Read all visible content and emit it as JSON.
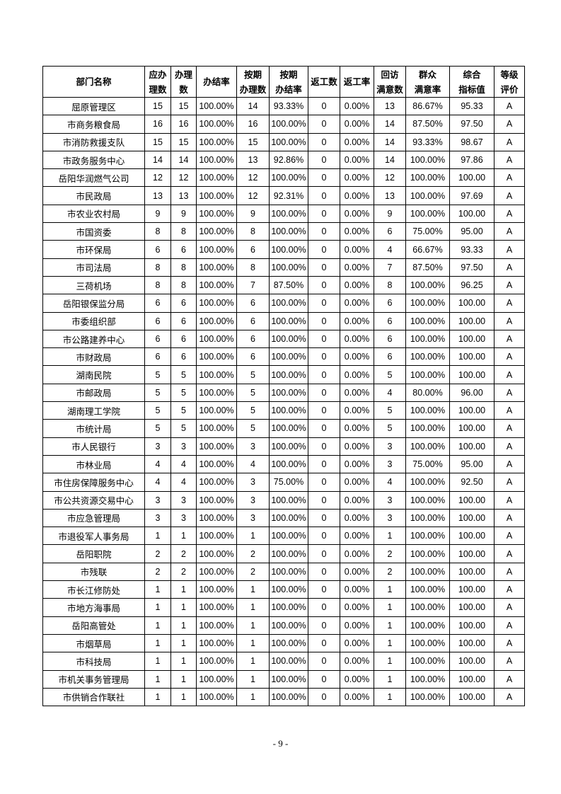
{
  "table": {
    "headers": [
      "部门名称",
      "应办\n理数",
      "办理\n数",
      "办结率",
      "按期\n办理数",
      "按期\n办结率",
      "返工数",
      "返工率",
      "回访\n满意数",
      "群众\n满意率",
      "综合\n指标值",
      "等级\n评价"
    ],
    "rows": [
      [
        "屈原管理区",
        "15",
        "15",
        "100.00%",
        "14",
        "93.33%",
        "0",
        "0.00%",
        "13",
        "86.67%",
        "95.33",
        "A"
      ],
      [
        "市商务粮食局",
        "16",
        "16",
        "100.00%",
        "16",
        "100.00%",
        "0",
        "0.00%",
        "14",
        "87.50%",
        "97.50",
        "A"
      ],
      [
        "市消防救援支队",
        "15",
        "15",
        "100.00%",
        "15",
        "100.00%",
        "0",
        "0.00%",
        "14",
        "93.33%",
        "98.67",
        "A"
      ],
      [
        "市政务服务中心",
        "14",
        "14",
        "100.00%",
        "13",
        "92.86%",
        "0",
        "0.00%",
        "14",
        "100.00%",
        "97.86",
        "A"
      ],
      [
        "岳阳华润燃气公司",
        "12",
        "12",
        "100.00%",
        "12",
        "100.00%",
        "0",
        "0.00%",
        "12",
        "100.00%",
        "100.00",
        "A"
      ],
      [
        "市民政局",
        "13",
        "13",
        "100.00%",
        "12",
        "92.31%",
        "0",
        "0.00%",
        "13",
        "100.00%",
        "97.69",
        "A"
      ],
      [
        "市农业农村局",
        "9",
        "9",
        "100.00%",
        "9",
        "100.00%",
        "0",
        "0.00%",
        "9",
        "100.00%",
        "100.00",
        "A"
      ],
      [
        "市国资委",
        "8",
        "8",
        "100.00%",
        "8",
        "100.00%",
        "0",
        "0.00%",
        "6",
        "75.00%",
        "95.00",
        "A"
      ],
      [
        "市环保局",
        "6",
        "6",
        "100.00%",
        "6",
        "100.00%",
        "0",
        "0.00%",
        "4",
        "66.67%",
        "93.33",
        "A"
      ],
      [
        "市司法局",
        "8",
        "8",
        "100.00%",
        "8",
        "100.00%",
        "0",
        "0.00%",
        "7",
        "87.50%",
        "97.50",
        "A"
      ],
      [
        "三荷机场",
        "8",
        "8",
        "100.00%",
        "7",
        "87.50%",
        "0",
        "0.00%",
        "8",
        "100.00%",
        "96.25",
        "A"
      ],
      [
        "岳阳银保监分局",
        "6",
        "6",
        "100.00%",
        "6",
        "100.00%",
        "0",
        "0.00%",
        "6",
        "100.00%",
        "100.00",
        "A"
      ],
      [
        "市委组织部",
        "6",
        "6",
        "100.00%",
        "6",
        "100.00%",
        "0",
        "0.00%",
        "6",
        "100.00%",
        "100.00",
        "A"
      ],
      [
        "市公路建养中心",
        "6",
        "6",
        "100.00%",
        "6",
        "100.00%",
        "0",
        "0.00%",
        "6",
        "100.00%",
        "100.00",
        "A"
      ],
      [
        "市财政局",
        "6",
        "6",
        "100.00%",
        "6",
        "100.00%",
        "0",
        "0.00%",
        "6",
        "100.00%",
        "100.00",
        "A"
      ],
      [
        "湖南民院",
        "5",
        "5",
        "100.00%",
        "5",
        "100.00%",
        "0",
        "0.00%",
        "5",
        "100.00%",
        "100.00",
        "A"
      ],
      [
        "市邮政局",
        "5",
        "5",
        "100.00%",
        "5",
        "100.00%",
        "0",
        "0.00%",
        "4",
        "80.00%",
        "96.00",
        "A"
      ],
      [
        "湖南理工学院",
        "5",
        "5",
        "100.00%",
        "5",
        "100.00%",
        "0",
        "0.00%",
        "5",
        "100.00%",
        "100.00",
        "A"
      ],
      [
        "市统计局",
        "5",
        "5",
        "100.00%",
        "5",
        "100.00%",
        "0",
        "0.00%",
        "5",
        "100.00%",
        "100.00",
        "A"
      ],
      [
        "市人民银行",
        "3",
        "3",
        "100.00%",
        "3",
        "100.00%",
        "0",
        "0.00%",
        "3",
        "100.00%",
        "100.00",
        "A"
      ],
      [
        "市林业局",
        "4",
        "4",
        "100.00%",
        "4",
        "100.00%",
        "0",
        "0.00%",
        "3",
        "75.00%",
        "95.00",
        "A"
      ],
      [
        "市住房保障服务中心",
        "4",
        "4",
        "100.00%",
        "3",
        "75.00%",
        "0",
        "0.00%",
        "4",
        "100.00%",
        "92.50",
        "A"
      ],
      [
        "市公共资源交易中心",
        "3",
        "3",
        "100.00%",
        "3",
        "100.00%",
        "0",
        "0.00%",
        "3",
        "100.00%",
        "100.00",
        "A"
      ],
      [
        "市应急管理局",
        "3",
        "3",
        "100.00%",
        "3",
        "100.00%",
        "0",
        "0.00%",
        "3",
        "100.00%",
        "100.00",
        "A"
      ],
      [
        "市退役军人事务局",
        "1",
        "1",
        "100.00%",
        "1",
        "100.00%",
        "0",
        "0.00%",
        "1",
        "100.00%",
        "100.00",
        "A"
      ],
      [
        "岳阳职院",
        "2",
        "2",
        "100.00%",
        "2",
        "100.00%",
        "0",
        "0.00%",
        "2",
        "100.00%",
        "100.00",
        "A"
      ],
      [
        "市残联",
        "2",
        "2",
        "100.00%",
        "2",
        "100.00%",
        "0",
        "0.00%",
        "2",
        "100.00%",
        "100.00",
        "A"
      ],
      [
        "市长江修防处",
        "1",
        "1",
        "100.00%",
        "1",
        "100.00%",
        "0",
        "0.00%",
        "1",
        "100.00%",
        "100.00",
        "A"
      ],
      [
        "市地方海事局",
        "1",
        "1",
        "100.00%",
        "1",
        "100.00%",
        "0",
        "0.00%",
        "1",
        "100.00%",
        "100.00",
        "A"
      ],
      [
        "岳阳高管处",
        "1",
        "1",
        "100.00%",
        "1",
        "100.00%",
        "0",
        "0.00%",
        "1",
        "100.00%",
        "100.00",
        "A"
      ],
      [
        "市烟草局",
        "1",
        "1",
        "100.00%",
        "1",
        "100.00%",
        "0",
        "0.00%",
        "1",
        "100.00%",
        "100.00",
        "A"
      ],
      [
        "市科技局",
        "1",
        "1",
        "100.00%",
        "1",
        "100.00%",
        "0",
        "0.00%",
        "1",
        "100.00%",
        "100.00",
        "A"
      ],
      [
        "市机关事务管理局",
        "1",
        "1",
        "100.00%",
        "1",
        "100.00%",
        "0",
        "0.00%",
        "1",
        "100.00%",
        "100.00",
        "A"
      ],
      [
        "市供销合作联社",
        "1",
        "1",
        "100.00%",
        "1",
        "100.00%",
        "0",
        "0.00%",
        "1",
        "100.00%",
        "100.00",
        "A"
      ]
    ]
  },
  "footer": {
    "page_number": "- 9 -"
  }
}
